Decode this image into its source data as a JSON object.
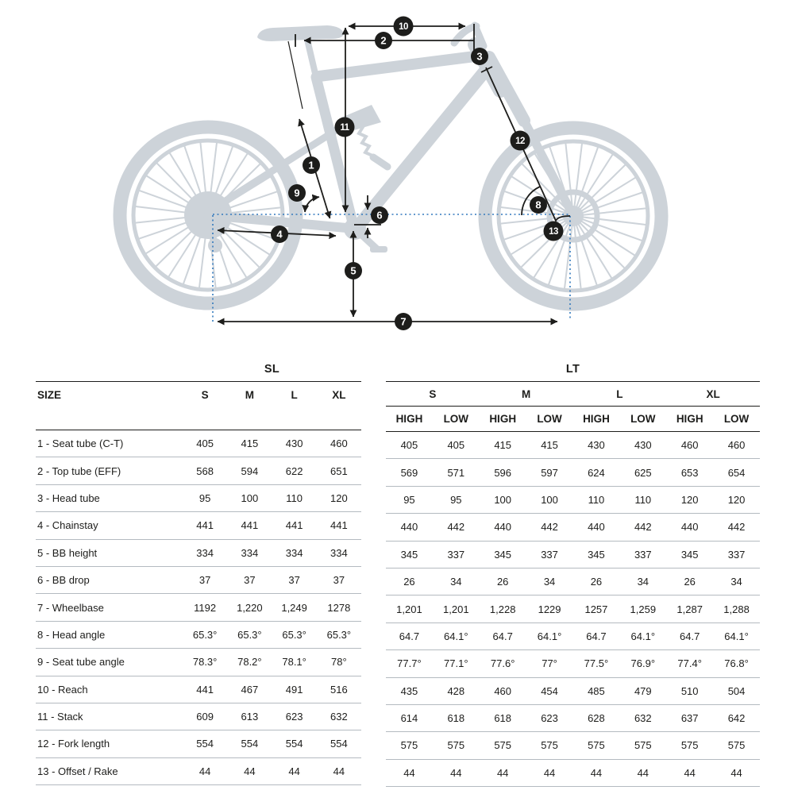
{
  "page": {
    "background": "#ffffff"
  },
  "diagram": {
    "silhouette_color": "#cdd3d9",
    "dimension_color": "#1d1d1b",
    "dotted_line_color": "#3279bd",
    "callouts": [
      "1",
      "2",
      "3",
      "4",
      "5",
      "6",
      "7",
      "8",
      "9",
      "10",
      "11",
      "12",
      "13"
    ]
  },
  "tables": {
    "row_labels": [
      "1 - Seat tube (C-T)",
      "2 - Top tube (EFF)",
      "3 - Head tube",
      "4 - Chainstay",
      "5 - BB height",
      "6 - BB drop",
      "7 - Wheelbase",
      "8 - Head angle",
      "9 - Seat tube angle",
      "10 - Reach",
      "11 - Stack",
      "12 - Fork length",
      "13 - Offset / Rake"
    ],
    "left": {
      "group_label": "SL",
      "size_label": "SIZE",
      "columns": [
        "S",
        "M",
        "L",
        "XL"
      ],
      "rows": [
        [
          "405",
          "415",
          "430",
          "460"
        ],
        [
          "568",
          "594",
          "622",
          "651"
        ],
        [
          "95",
          "100",
          "110",
          "120"
        ],
        [
          "441",
          "441",
          "441",
          "441"
        ],
        [
          "334",
          "334",
          "334",
          "334"
        ],
        [
          "37",
          "37",
          "37",
          "37"
        ],
        [
          "1192",
          "1,220",
          "1,249",
          "1278"
        ],
        [
          "65.3°",
          "65.3°",
          "65.3°",
          "65.3°"
        ],
        [
          "78.3°",
          "78.2°",
          "78.1°",
          "78°"
        ],
        [
          "441",
          "467",
          "491",
          "516"
        ],
        [
          "609",
          "613",
          "623",
          "632"
        ],
        [
          "554",
          "554",
          "554",
          "554"
        ],
        [
          "44",
          "44",
          "44",
          "44"
        ]
      ]
    },
    "right": {
      "group_label": "LT",
      "size_columns": [
        "S",
        "M",
        "L",
        "XL"
      ],
      "sub_columns": [
        "HIGH",
        "LOW"
      ],
      "rows": [
        [
          "405",
          "405",
          "415",
          "415",
          "430",
          "430",
          "460",
          "460"
        ],
        [
          "569",
          "571",
          "596",
          "597",
          "624",
          "625",
          "653",
          "654"
        ],
        [
          "95",
          "95",
          "100",
          "100",
          "110",
          "110",
          "120",
          "120"
        ],
        [
          "440",
          "442",
          "440",
          "442",
          "440",
          "442",
          "440",
          "442"
        ],
        [
          "345",
          "337",
          "345",
          "337",
          "345",
          "337",
          "345",
          "337"
        ],
        [
          "26",
          "34",
          "26",
          "34",
          "26",
          "34",
          "26",
          "34"
        ],
        [
          "1,201",
          "1,201",
          "1,228",
          "1229",
          "1257",
          "1,259",
          "1,287",
          "1,288"
        ],
        [
          "64.7",
          "64.1°",
          "64.7",
          "64.1°",
          "64.7",
          "64.1°",
          "64.7",
          "64.1°"
        ],
        [
          "77.7°",
          "77.1°",
          "77.6°",
          "77°",
          "77.5°",
          "76.9°",
          "77.4°",
          "76.8°"
        ],
        [
          "435",
          "428",
          "460",
          "454",
          "485",
          "479",
          "510",
          "504"
        ],
        [
          "614",
          "618",
          "618",
          "623",
          "628",
          "632",
          "637",
          "642"
        ],
        [
          "575",
          "575",
          "575",
          "575",
          "575",
          "575",
          "575",
          "575"
        ],
        [
          "44",
          "44",
          "44",
          "44",
          "44",
          "44",
          "44",
          "44"
        ]
      ]
    }
  }
}
